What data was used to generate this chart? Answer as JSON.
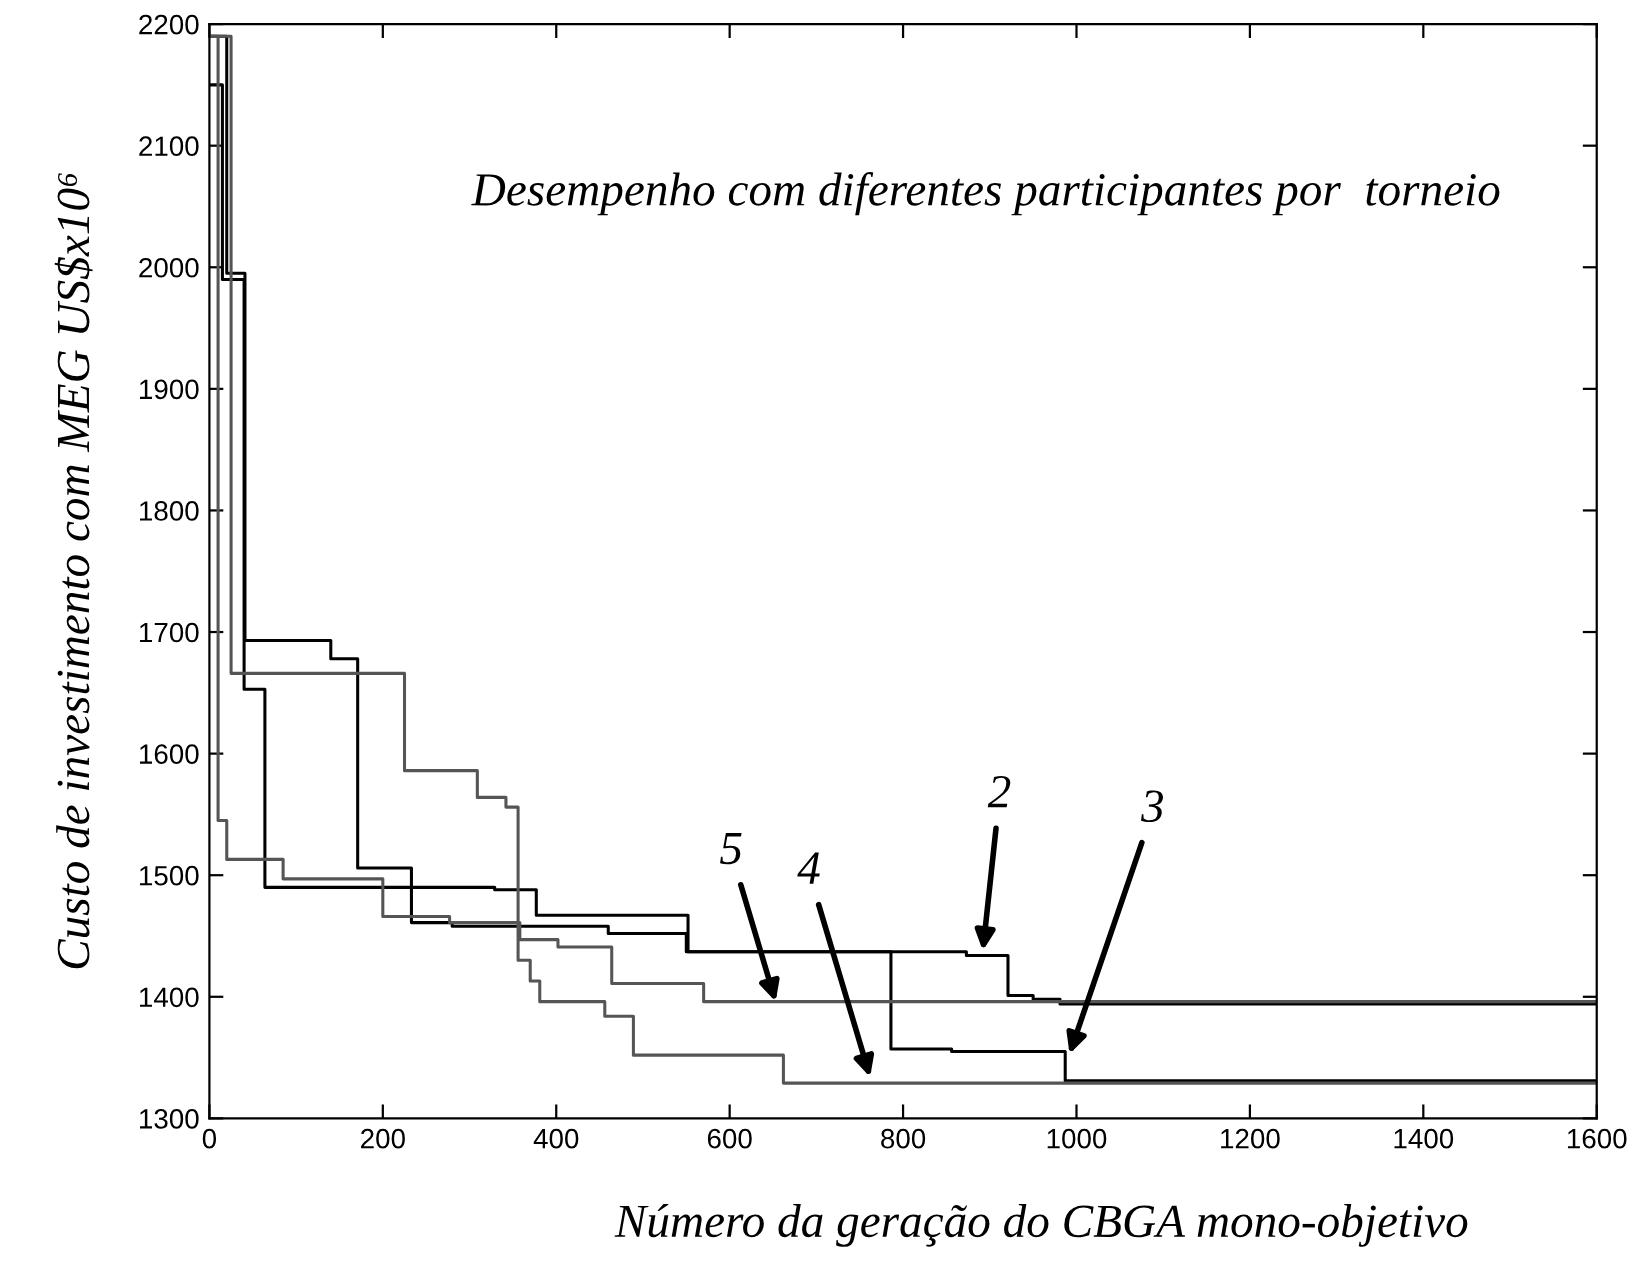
{
  "chart_data": {
    "type": "step",
    "xlabel": "Número da geração do CBGA mono-objetivo",
    "ylabel": "Custo de investimento com MEG US$x10⁶",
    "xlim": [
      0,
      1600
    ],
    "ylim": [
      1300,
      2200
    ],
    "xticks": [
      0,
      200,
      400,
      600,
      800,
      1000,
      1200,
      1400,
      1600
    ],
    "yticks": [
      1300,
      1400,
      1500,
      1600,
      1700,
      1800,
      1900,
      2000,
      2100,
      2200
    ],
    "grid": false,
    "series": [
      {
        "color": "#000000",
        "x": [
          0,
          15,
          40,
          64,
          329,
          377,
          552,
          873,
          921,
          950,
          981,
          1600
        ],
        "values": [
          2150,
          1990,
          1653,
          1490,
          1488,
          1467,
          1437,
          1434,
          1401,
          1398,
          1394,
          1394
        ]
      },
      {
        "color": "#000000",
        "x": [
          0,
          20,
          41,
          140,
          171,
          233,
          280,
          460,
          550,
          786,
          856,
          987,
          1600
        ],
        "values": [
          2190,
          1995,
          1693,
          1678,
          1506,
          1461,
          1458,
          1452,
          1437,
          1357,
          1355,
          1331,
          1331
        ]
      },
      {
        "color": "#555555",
        "x": [
          0,
          25,
          225,
          309,
          342,
          356,
          370,
          381,
          456,
          489,
          662,
          1600
        ],
        "values": [
          2190,
          1666,
          1586,
          1564,
          1556,
          1430,
          1413,
          1396,
          1384,
          1352,
          1329,
          1329
        ]
      },
      {
        "color": "#555555",
        "x": [
          0,
          10,
          20,
          85,
          200,
          277,
          358,
          402,
          464,
          570,
          1600
        ],
        "values": [
          2190,
          1545,
          1513,
          1497,
          1466,
          1461,
          1447,
          1441,
          1411,
          1396,
          1396
        ]
      }
    ],
    "annotations": [
      "Desempenho com diferentes participantes por  torneio",
      {
        "text": "2",
        "x": 892,
        "y": 1438
      },
      {
        "text": "3",
        "x": 992,
        "y": 1353
      },
      {
        "text": "4",
        "x": 762,
        "y": 1334
      },
      {
        "text": "5",
        "x": 653,
        "y": 1396
      }
    ]
  }
}
